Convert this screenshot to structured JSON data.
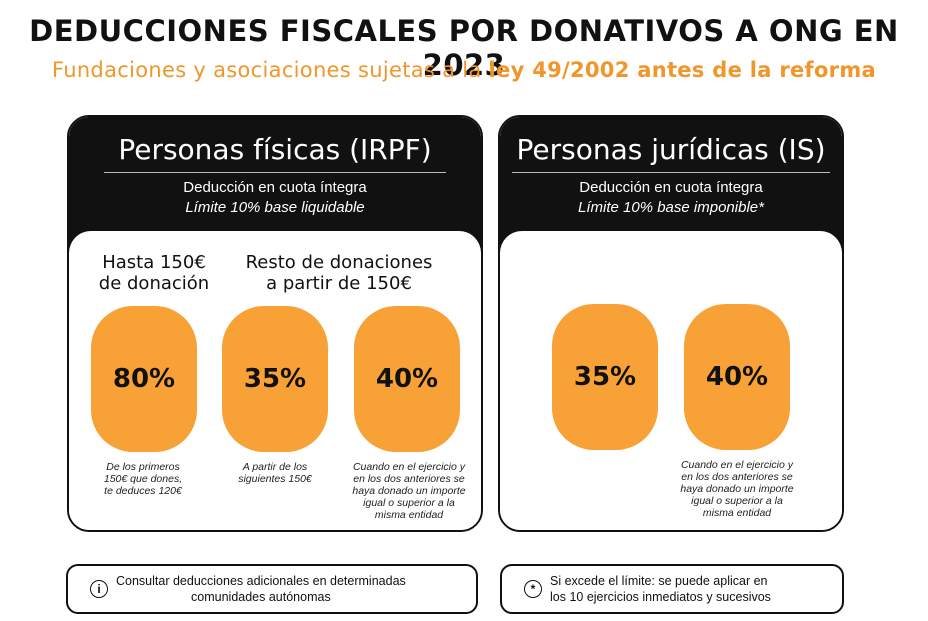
{
  "header": {
    "title": "DEDUCCIONES FISCALES POR DONATIVOS A ONG EN 2023",
    "subtitle_plain": "Fundaciones y asociaciones sujetas a la ",
    "subtitle_bold": "ley 49/2002 antes de la reforma"
  },
  "colors": {
    "accent": "#f7a136",
    "dark": "#111111",
    "subtitle": "#f0962a"
  },
  "cards": {
    "individuals": {
      "title": "Personas físicas (IRPF)",
      "desc_line1": "Deducción en cuota íntegra",
      "desc_line2": "Límite 10% base liquidable",
      "group1": {
        "line1": "Hasta 150€",
        "line2": "de donación"
      },
      "group2": {
        "line1": "Resto de donaciones",
        "line2": "a partir de 150€"
      },
      "rates": [
        {
          "value": "80%",
          "note_lines": [
            "De los primeros",
            "150€ que dones,",
            "te deduces 120€"
          ]
        },
        {
          "value": "35%",
          "note_lines": [
            "A partir de los",
            "siguientes 150€"
          ]
        },
        {
          "value": "40%",
          "note_lines": [
            "Cuando en el ejercicio y",
            "en los dos anteriores se",
            "haya donado un importe",
            "igual o superior a la",
            "misma entidad"
          ]
        }
      ]
    },
    "companies": {
      "title": "Personas jurídicas (IS)",
      "desc_line1": "Deducción en cuota íntegra",
      "desc_line2": "Límite 10% base imponible",
      "desc_mark": "*",
      "rates": [
        {
          "value": "35%"
        },
        {
          "value": "40%",
          "note_lines": [
            "Cuando en el ejercicio y",
            "en los dos anteriores se",
            "haya donado un importe",
            "igual o superior a la",
            "misma entidad"
          ]
        }
      ]
    }
  },
  "footer": {
    "left": {
      "icon": "info-icon",
      "icon_glyph": "i",
      "line1": "Consultar deducciones adicionales en determinadas",
      "line2": "comunidades autónomas"
    },
    "right": {
      "icon": "asterisk-icon",
      "icon_glyph": "*",
      "line1": "Si excede el límite: se puede aplicar en",
      "line2": "los 10 ejercicios inmediatos y sucesivos"
    }
  }
}
